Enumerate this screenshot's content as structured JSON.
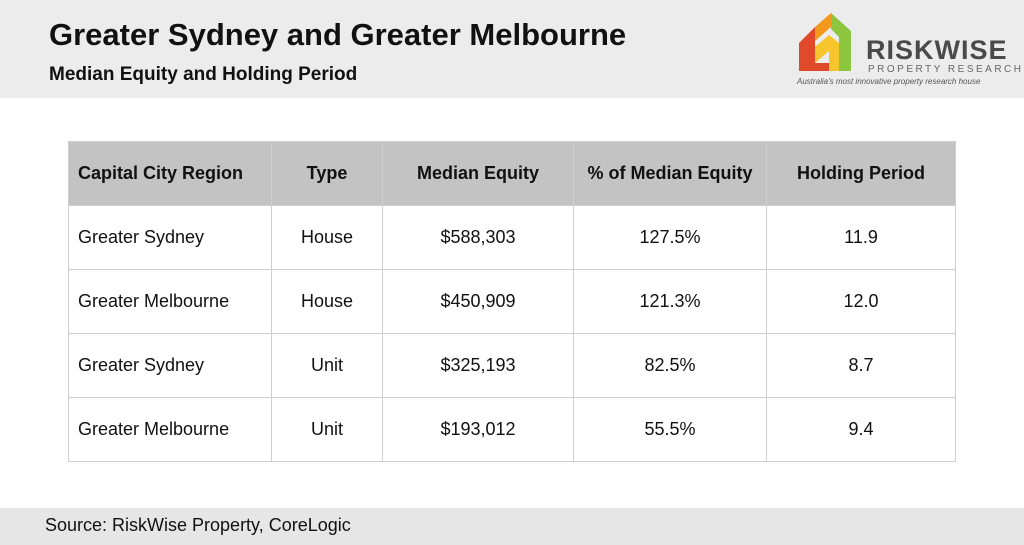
{
  "header": {
    "title": "Greater Sydney and Greater Melbourne",
    "subtitle": "Median Equity and Holding Period"
  },
  "logo": {
    "name": "RISKWISE",
    "sub": "PROPERTY RESEARCH",
    "tagline": "Australia's most innovative property research house",
    "colors": [
      "#e04a2a",
      "#f39a1e",
      "#8cc63f",
      "#f7c52c"
    ]
  },
  "chart_data": {
    "type": "table",
    "title": "Greater Sydney and Greater Melbourne",
    "subtitle": "Median Equity and Holding Period",
    "columns": [
      "Capital City Region",
      "Type",
      "Median Equity",
      "% of Median Equity",
      "Holding Period"
    ],
    "rows": [
      [
        "Greater Sydney",
        "House",
        "$588,303",
        "127.5%",
        "11.9"
      ],
      [
        "Greater Melbourne",
        "House",
        "$450,909",
        "121.3%",
        "12.0"
      ],
      [
        "Greater Sydney",
        "Unit",
        "$325,193",
        "82.5%",
        "8.7"
      ],
      [
        "Greater Melbourne",
        "Unit",
        "$193,012",
        "55.5%",
        "9.4"
      ]
    ]
  },
  "footer": {
    "source": "Source: RiskWise Property, CoreLogic"
  }
}
